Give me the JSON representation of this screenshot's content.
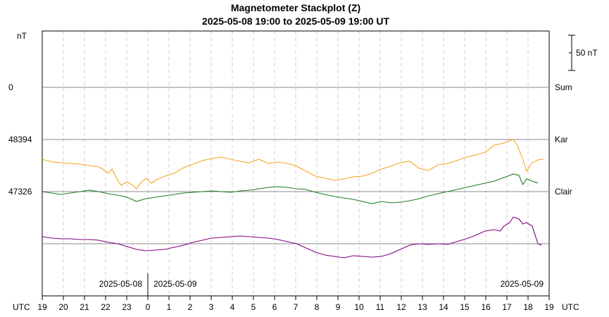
{
  "chart_data": {
    "type": "line",
    "title": "Magnetometer Stackplot (Z)",
    "subtitle": "2025-05-08 19:00 to 2025-05-09 19:00 UT",
    "y_unit_label": "nT",
    "scale_bar": {
      "label": "50 nT",
      "value": 50
    },
    "x_axis": {
      "unit_label_left": "UTC",
      "unit_label_right": "UTC",
      "tick_labels": [
        "19",
        "20",
        "21",
        "22",
        "23",
        "0",
        "1",
        "2",
        "3",
        "4",
        "5",
        "6",
        "7",
        "8",
        "9",
        "10",
        "11",
        "12",
        "13",
        "14",
        "15",
        "16",
        "17",
        "18",
        "19"
      ],
      "range_hours": [
        0,
        24
      ],
      "date_labels": [
        {
          "text": "2025-05-08",
          "side": "left of midnight"
        },
        {
          "text": "2025-05-09",
          "side": "right of midnight"
        },
        {
          "text": "2025-05-09",
          "side": "right end"
        }
      ]
    },
    "grid": true,
    "series": [
      {
        "name": "Sum",
        "baseline_label": "0",
        "color": "#f5a623",
        "points": [
          [
            0,
            -28
          ],
          [
            0.5,
            -32
          ],
          [
            1.0,
            -33
          ],
          [
            1.5,
            -34
          ],
          [
            2.0,
            -35
          ],
          [
            2.5,
            -37
          ],
          [
            3.0,
            -39
          ],
          [
            3.2,
            -42
          ],
          [
            3.5,
            -48
          ],
          [
            3.7,
            -42
          ],
          [
            4.0,
            -58
          ],
          [
            4.2,
            -65
          ],
          [
            4.5,
            -60
          ],
          [
            4.8,
            -65
          ],
          [
            5.0,
            -70
          ],
          [
            5.2,
            -62
          ],
          [
            5.5,
            -55
          ],
          [
            5.8,
            -62
          ],
          [
            6.0,
            -58
          ],
          [
            6.5,
            -52
          ],
          [
            7.0,
            -48
          ],
          [
            7.5,
            -40
          ],
          [
            8.0,
            -35
          ],
          [
            8.5,
            -30
          ],
          [
            9.0,
            -27
          ],
          [
            9.5,
            -25
          ],
          [
            10.0,
            -28
          ],
          [
            10.5,
            -31
          ],
          [
            11.0,
            -33
          ],
          [
            11.5,
            -28
          ],
          [
            12.0,
            -34
          ],
          [
            12.5,
            -32
          ],
          [
            13.0,
            -34
          ],
          [
            13.5,
            -38
          ],
          [
            14.0,
            -45
          ],
          [
            14.5,
            -52
          ],
          [
            15.0,
            -55
          ],
          [
            15.5,
            -58
          ],
          [
            16.0,
            -56
          ],
          [
            16.5,
            -53
          ],
          [
            17.0,
            -52
          ],
          [
            17.5,
            -48
          ],
          [
            18.0,
            -42
          ],
          [
            18.5,
            -38
          ],
          [
            19.0,
            -33
          ],
          [
            19.5,
            -31
          ],
          [
            20.0,
            -41
          ],
          [
            20.5,
            -44
          ],
          [
            21.0,
            -36
          ],
          [
            21.5,
            -34
          ],
          [
            22.0,
            -30
          ],
          [
            22.5,
            -25
          ],
          [
            23.0,
            -22
          ],
          [
            23.5,
            -18
          ],
          [
            23.8,
            -12
          ],
          [
            24.0,
            -8
          ],
          [
            24.5,
            -5
          ],
          [
            25.0,
            0
          ],
          [
            25.2,
            -8
          ],
          [
            25.5,
            -28
          ],
          [
            25.7,
            -45
          ],
          [
            26.0,
            -33
          ],
          [
            26.3,
            -29
          ],
          [
            26.6,
            -28
          ]
        ]
      },
      {
        "name": "Kar",
        "baseline_label": "48394",
        "color": "#1e7d1e",
        "points": [
          [
            0,
            0
          ],
          [
            0.5,
            -2
          ],
          [
            1.0,
            -4
          ],
          [
            1.5,
            -2
          ],
          [
            2.0,
            0
          ],
          [
            2.5,
            2
          ],
          [
            3.0,
            0
          ],
          [
            3.5,
            -3
          ],
          [
            4.0,
            -5
          ],
          [
            4.5,
            -8
          ],
          [
            5.0,
            -14
          ],
          [
            5.5,
            -10
          ],
          [
            6.0,
            -8
          ],
          [
            6.5,
            -6
          ],
          [
            7.0,
            -4
          ],
          [
            7.5,
            -2
          ],
          [
            8.0,
            -1
          ],
          [
            8.5,
            0
          ],
          [
            9.0,
            1
          ],
          [
            9.5,
            0
          ],
          [
            10.0,
            -1
          ],
          [
            10.5,
            1
          ],
          [
            11.0,
            2
          ],
          [
            11.5,
            4
          ],
          [
            12.0,
            6
          ],
          [
            12.5,
            7
          ],
          [
            13.0,
            6
          ],
          [
            13.5,
            4
          ],
          [
            14.0,
            3
          ],
          [
            14.5,
            -1
          ],
          [
            15.0,
            -4
          ],
          [
            15.5,
            -7
          ],
          [
            16.0,
            -9
          ],
          [
            16.5,
            -11
          ],
          [
            17.0,
            -14
          ],
          [
            17.5,
            -17
          ],
          [
            18.0,
            -14
          ],
          [
            18.5,
            -16
          ],
          [
            19.0,
            -15
          ],
          [
            19.5,
            -13
          ],
          [
            20.0,
            -10
          ],
          [
            20.5,
            -6
          ],
          [
            21.0,
            -3
          ],
          [
            21.5,
            0
          ],
          [
            22.0,
            3
          ],
          [
            22.5,
            6
          ],
          [
            23.0,
            9
          ],
          [
            23.5,
            12
          ],
          [
            24.0,
            15
          ],
          [
            24.5,
            20
          ],
          [
            25.0,
            25
          ],
          [
            25.3,
            23
          ],
          [
            25.5,
            10
          ],
          [
            25.7,
            18
          ],
          [
            26.0,
            15
          ],
          [
            26.3,
            12
          ]
        ]
      },
      {
        "name": "Clair",
        "baseline_label": "47326",
        "color": "#800080",
        "points": [
          [
            0,
            10
          ],
          [
            0.5,
            8
          ],
          [
            1.0,
            7
          ],
          [
            1.5,
            7
          ],
          [
            2.0,
            6
          ],
          [
            2.5,
            6
          ],
          [
            3.0,
            5
          ],
          [
            3.5,
            2
          ],
          [
            4.0,
            0
          ],
          [
            4.5,
            -4
          ],
          [
            5.0,
            -8
          ],
          [
            5.5,
            -10
          ],
          [
            6.0,
            -9
          ],
          [
            6.5,
            -8
          ],
          [
            7.0,
            -5
          ],
          [
            7.5,
            -2
          ],
          [
            8.0,
            2
          ],
          [
            8.5,
            5
          ],
          [
            9.0,
            8
          ],
          [
            9.5,
            9
          ],
          [
            10.0,
            10
          ],
          [
            10.5,
            11
          ],
          [
            11.0,
            10
          ],
          [
            11.5,
            9
          ],
          [
            12.0,
            8
          ],
          [
            12.5,
            6
          ],
          [
            13.0,
            3
          ],
          [
            13.5,
            0
          ],
          [
            14.0,
            -6
          ],
          [
            14.5,
            -12
          ],
          [
            15.0,
            -16
          ],
          [
            15.5,
            -18
          ],
          [
            16.0,
            -20
          ],
          [
            16.5,
            -17
          ],
          [
            17.0,
            -18
          ],
          [
            17.5,
            -19
          ],
          [
            18.0,
            -18
          ],
          [
            18.5,
            -14
          ],
          [
            19.0,
            -8
          ],
          [
            19.5,
            -2
          ],
          [
            20.0,
            0
          ],
          [
            20.5,
            -1
          ],
          [
            21.0,
            0
          ],
          [
            21.5,
            -1
          ],
          [
            22.0,
            3
          ],
          [
            22.5,
            7
          ],
          [
            23.0,
            12
          ],
          [
            23.5,
            18
          ],
          [
            24.0,
            20
          ],
          [
            24.3,
            18
          ],
          [
            24.5,
            25
          ],
          [
            24.8,
            30
          ],
          [
            25.0,
            38
          ],
          [
            25.3,
            35
          ],
          [
            25.5,
            28
          ],
          [
            25.7,
            30
          ],
          [
            26.0,
            25
          ],
          [
            26.3,
            0
          ],
          [
            26.5,
            -2
          ]
        ]
      }
    ]
  }
}
